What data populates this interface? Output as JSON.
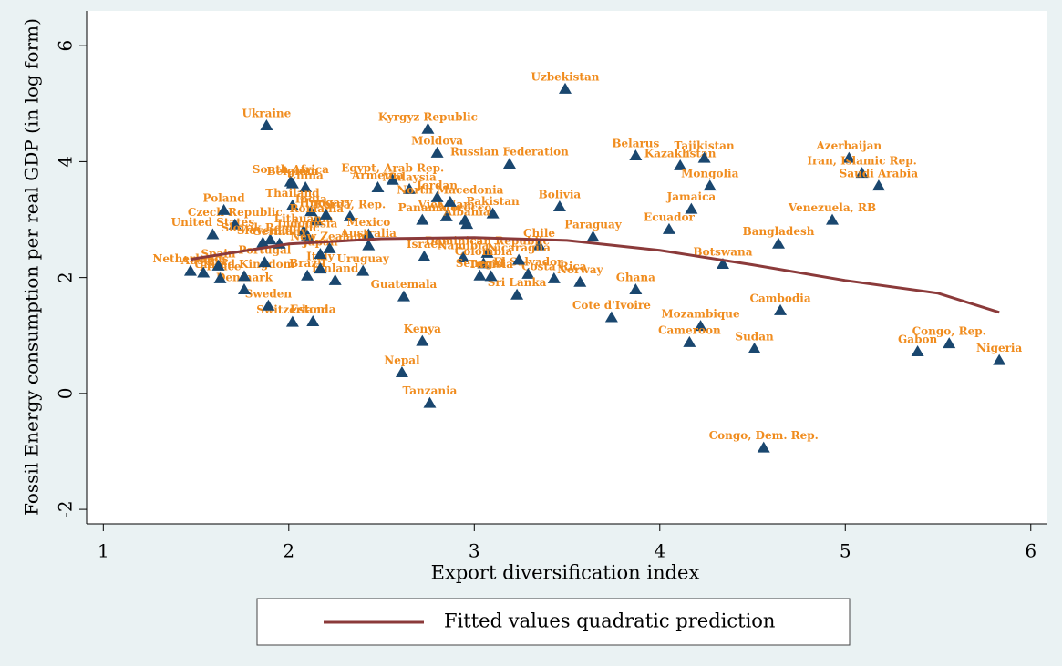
{
  "chart_data": {
    "type": "scatter",
    "x_label": "Export diversification index",
    "y_label": "Fossil Energy consumption per real GDP (in log form)",
    "xlim": [
      0.91,
      6.07
    ],
    "ylim": [
      -2.25,
      6.6
    ],
    "xticks": [
      1,
      2,
      3,
      4,
      5,
      6
    ],
    "yticks": [
      -2,
      0,
      2,
      4,
      6
    ],
    "legend": "bottom",
    "series": [
      {
        "type": "scatter",
        "color": "#1a476f",
        "label_color": "#f08c1e",
        "labels": [
          "Uzbekistan",
          "Ukraine",
          "Kyrgyz Republic",
          "Moldova",
          "Russian Federation",
          "Belarus",
          "Kazakhstan",
          "Tajikistan",
          "Azerbaijan",
          "Iran, Islamic Rep.",
          "Saudi Arabia",
          "Mongolia",
          "Jamaica",
          "Ecuador",
          "Venezuela, RB",
          "Bangladesh",
          "Botswana",
          "Cambodia",
          "Mozambique",
          "Cameroon",
          "Sudan",
          "Congo, Dem. Rep.",
          "Congo, Rep.",
          "Gabon",
          "Nigeria",
          "Ghana",
          "Cote d'Ivoire",
          "Paraguay",
          "Bolivia",
          "Chile",
          "Pakistan",
          "Norway",
          "Costa Rica",
          "El Salvador",
          "Sri Lanka",
          "Nicaragua",
          "Dominican Republic",
          "Namibia",
          "Colombia",
          "Senegal",
          "Tunisia",
          "Israel",
          "Guatemala",
          "Kenya",
          "Nepal",
          "Tanzania",
          "Morocco",
          "Panama",
          "Viet Nam",
          "Malaysia",
          "Jordan",
          "North Macedonia",
          "Albania",
          "Egypt, Arab Rep.",
          "Armenia",
          "Uruguay",
          "Finland",
          "Brazil",
          "Italy",
          "Japan",
          "Estonia",
          "Switzerland",
          "Sweden",
          "Denmark",
          "France",
          "United Kingdom",
          "Netherlands",
          "Austria",
          "Spain",
          "Portugal",
          "United States",
          "Czech Republic",
          "Poland",
          "Slovak Republic",
          "China",
          "South Africa",
          "Belgium",
          "Thailand",
          "India",
          "Romania",
          "Korea, Rep.",
          "Lithuania",
          "Indonesia",
          "Australia",
          "Mexico",
          "New Zealand",
          "Germany",
          "Slovenia",
          "Hungary"
        ],
        "x": [
          3.49,
          1.88,
          2.75,
          2.8,
          3.19,
          3.87,
          4.11,
          4.24,
          5.02,
          5.09,
          5.18,
          4.27,
          4.17,
          4.05,
          4.93,
          4.64,
          4.34,
          4.65,
          4.22,
          4.16,
          4.51,
          4.56,
          5.56,
          5.39,
          5.83,
          3.87,
          3.74,
          3.64,
          3.46,
          3.35,
          3.1,
          3.57,
          3.43,
          3.29,
          3.23,
          3.24,
          3.07,
          2.94,
          3.05,
          3.03,
          3.09,
          2.73,
          2.62,
          2.72,
          2.61,
          2.76,
          2.95,
          2.72,
          2.85,
          2.65,
          2.8,
          2.87,
          2.96,
          2.56,
          2.48,
          2.4,
          2.25,
          2.1,
          2.17,
          2.17,
          2.13,
          2.02,
          1.89,
          1.76,
          1.63,
          1.76,
          1.47,
          1.54,
          1.62,
          1.87,
          1.59,
          1.71,
          1.65,
          1.9,
          2.09,
          2.01,
          2.02,
          2.02,
          2.12,
          2.15,
          2.33,
          2.08,
          2.1,
          2.43,
          2.43,
          2.22,
          1.95,
          1.86,
          2.2
        ],
        "values": [
          5.25,
          4.62,
          4.56,
          4.15,
          3.96,
          4.1,
          3.93,
          4.06,
          4.06,
          3.8,
          3.58,
          3.58,
          3.18,
          2.83,
          2.99,
          2.58,
          2.23,
          1.43,
          1.16,
          0.88,
          0.77,
          -0.94,
          0.86,
          0.72,
          0.57,
          1.79,
          1.31,
          2.7,
          3.22,
          2.55,
          3.1,
          1.92,
          1.98,
          2.06,
          1.7,
          2.3,
          2.42,
          2.34,
          2.24,
          2.03,
          2.02,
          2.36,
          1.67,
          0.9,
          0.36,
          -0.17,
          2.99,
          2.99,
          3.05,
          3.52,
          3.38,
          3.3,
          2.92,
          3.68,
          3.55,
          2.11,
          1.95,
          2.03,
          2.15,
          2.4,
          1.24,
          1.23,
          1.51,
          1.79,
          1.98,
          2.02,
          2.11,
          2.08,
          2.2,
          2.26,
          2.74,
          2.91,
          3.16,
          2.65,
          3.55,
          3.65,
          3.62,
          3.24,
          3.14,
          2.98,
          3.05,
          2.8,
          2.72,
          2.55,
          2.74,
          2.5,
          2.58,
          2.6,
          3.08
        ]
      },
      {
        "type": "line",
        "name": "Fitted values quadratic prediction",
        "color": "#8b3a3a",
        "x": [
          1.47,
          1.5,
          2,
          2.5,
          3,
          3.5,
          4,
          4.5,
          5,
          5.5,
          5.83
        ],
        "values": [
          2.31,
          2.33,
          2.58,
          2.67,
          2.69,
          2.64,
          2.47,
          2.22,
          1.95,
          1.73,
          1.4
        ]
      }
    ]
  }
}
